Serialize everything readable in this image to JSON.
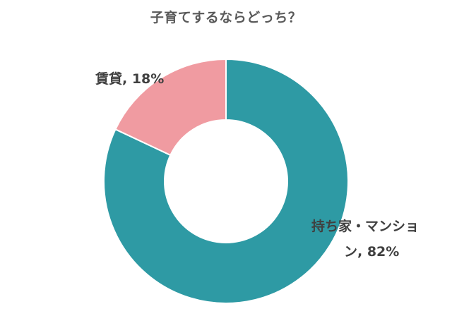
{
  "chart_data": {
    "type": "pie",
    "title": "子育てするならどっち？",
    "categories": [
      "持ち家・マンション",
      "賃貸"
    ],
    "values": [
      82,
      18
    ],
    "unit": "%",
    "colors": [
      "#2e9aa4",
      "#f09ba1"
    ],
    "donut": true,
    "labels": [
      {
        "lines": [
          "持ち家・マンショ",
          "ン, 82%"
        ]
      },
      {
        "lines": [
          "賃貸, 18%"
        ]
      }
    ]
  }
}
